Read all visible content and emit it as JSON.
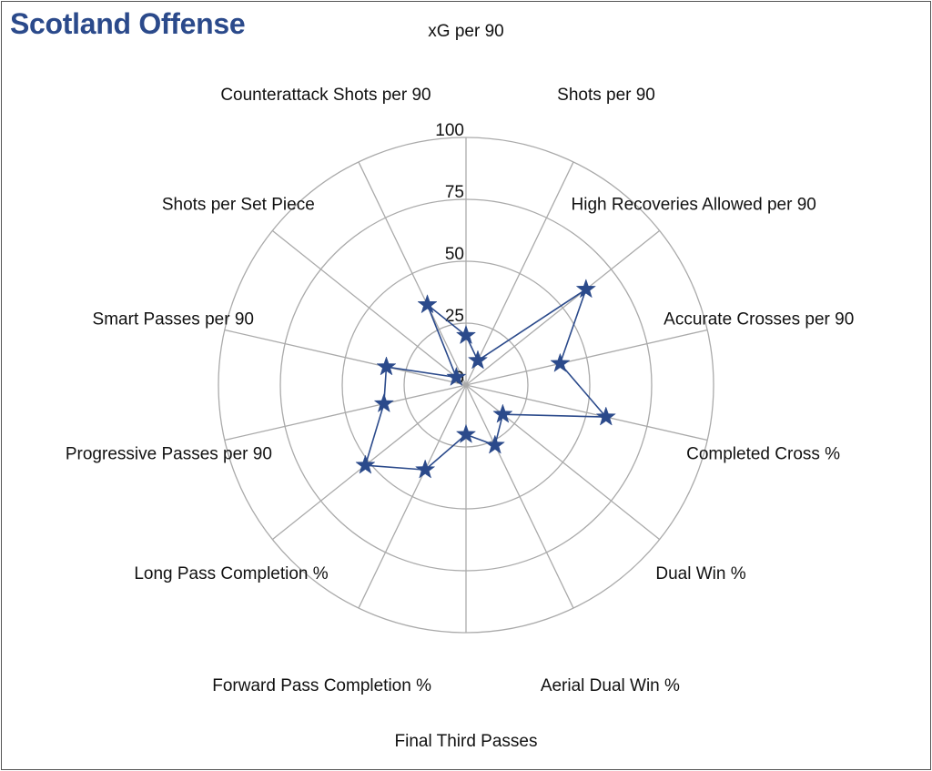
{
  "page": {
    "title": "Scotland Offense"
  },
  "chart_data": {
    "type": "radar",
    "title": "Scotland Offense",
    "range": [
      0,
      100
    ],
    "rings": [
      25,
      50,
      75,
      100
    ],
    "tick_labels": [
      "0",
      "25",
      "50",
      "75",
      "100"
    ],
    "grid": true,
    "colors": {
      "series": "#2b4a8b",
      "grid": "#aaaaaa",
      "title": "#2b4a8b"
    },
    "categories": [
      "xG per 90",
      "Shots per 90",
      "High Recoveries Allowed per 90",
      "Accurate Crosses per 90",
      "Completed Cross %",
      "Dual Win %",
      "Aerial Dual Win %",
      "Final Third Passes",
      "Forward Pass Completion %",
      "Long Pass Completion %",
      "Progressive Passes per 90",
      "Smart Passes per 90",
      "Shots per Set Piece",
      "Counterattack Shots per 90"
    ],
    "series": [
      {
        "values": [
          20,
          11,
          62,
          39,
          58,
          19,
          27,
          20,
          38,
          52,
          34,
          33,
          5,
          36
        ],
        "marker": "star"
      }
    ]
  }
}
